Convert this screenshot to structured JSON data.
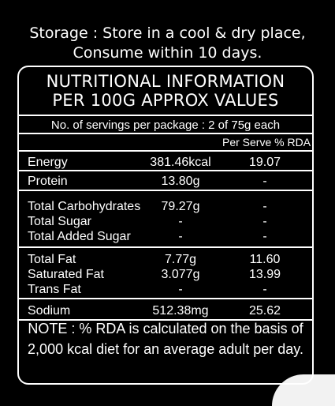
{
  "storage": {
    "line1": "Storage : Store in a cool & dry place,",
    "line2": "Consume within 10 days."
  },
  "panel": {
    "title_line1": "NUTRITIONAL INFORMATION",
    "title_line2": "PER 100G APPROX VALUES",
    "servings": "No. of servings per package : 2 of 75g each",
    "column_header": "Per Serve % RDA",
    "sections": [
      {
        "rows": [
          {
            "name": "Energy",
            "amount": "381.46kcal",
            "rda": "19.07"
          }
        ]
      },
      {
        "rows": [
          {
            "name": "Protein",
            "amount": "13.80g",
            "rda": "-"
          }
        ]
      },
      {
        "rows": [
          {
            "name": "Total Carbohydrates",
            "amount": "79.27g",
            "rda": "-"
          },
          {
            "name": "Total Sugar",
            "amount": "-",
            "rda": "-"
          },
          {
            "name": "Total Added Sugar",
            "amount": "-",
            "rda": "-"
          }
        ]
      },
      {
        "rows": [
          {
            "name": "Total Fat",
            "amount": "7.77g",
            "rda": "11.60"
          },
          {
            "name": "Saturated Fat",
            "amount": "3.077g",
            "rda": "13.99"
          },
          {
            "name": "Trans Fat",
            "amount": "-",
            "rda": "-"
          }
        ]
      },
      {
        "rows": [
          {
            "name": "Sodium",
            "amount": "512.38mg",
            "rda": "25.62"
          }
        ]
      }
    ],
    "note_line1": "NOTE : % RDA is calculated on the basis of",
    "note_line2": "2,000 kcal diet for an average adult per day."
  }
}
